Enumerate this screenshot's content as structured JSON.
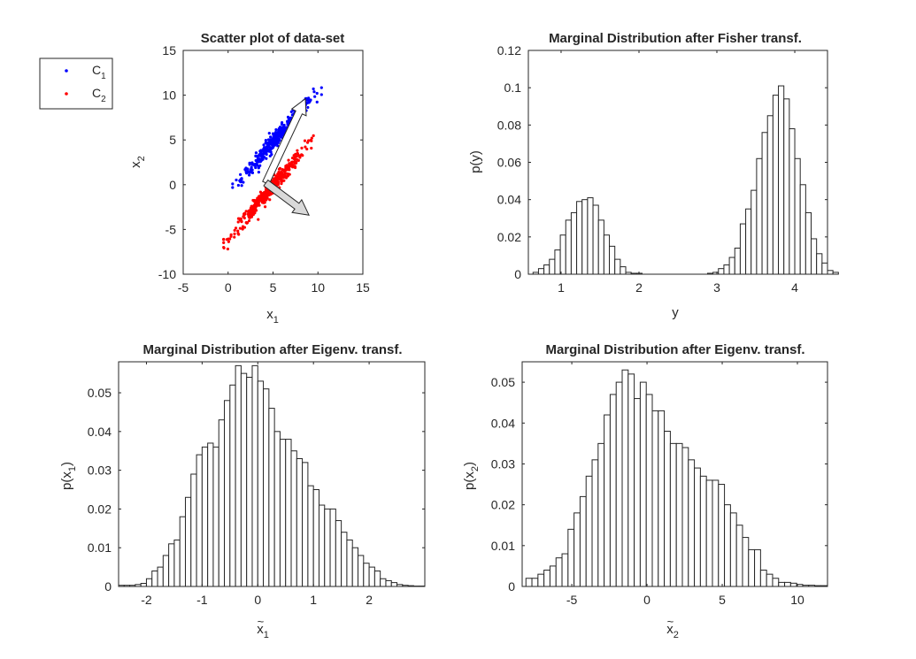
{
  "chart_data": [
    {
      "type": "scatter",
      "title": "Scatter plot of data-set",
      "xlabel": "x",
      "xlabel_sub": "1",
      "ylabel": "x",
      "ylabel_sub": "2",
      "xlim": [
        -5,
        15
      ],
      "ylim": [
        -10,
        15
      ],
      "xticks": [
        -5,
        0,
        5,
        10,
        15
      ],
      "yticks": [
        -10,
        -5,
        0,
        5,
        10,
        15
      ],
      "legend": {
        "placement": "outside-left",
        "entries": [
          {
            "label": "C",
            "sub": "1",
            "color": "#0000ff"
          },
          {
            "label": "C",
            "sub": "2",
            "color": "#ff0000"
          }
        ]
      },
      "series": [
        {
          "name": "C1",
          "color": "#0000ff",
          "generator": {
            "n": 400,
            "slope": 1.15,
            "intercept": -1.0,
            "x_range": [
              0.5,
              10.4
            ],
            "spread": 0.45
          }
        },
        {
          "name": "C2",
          "color": "#ff0000",
          "generator": {
            "n": 400,
            "slope": 1.17,
            "intercept": -6.0,
            "x_range": [
              -0.5,
              9.5
            ],
            "spread": 0.45
          }
        }
      ],
      "arrows": [
        {
          "from": [
            4.2,
            0.2
          ],
          "to": [
            8.6,
            9.6
          ],
          "fill": "#ffffff"
        },
        {
          "from": [
            4.2,
            0.2
          ],
          "to": [
            9.0,
            -3.4
          ],
          "fill": "#d9d9d9"
        }
      ]
    },
    {
      "type": "histogram",
      "title": "Marginal Distribution after Fisher transf.",
      "xlabel": "y",
      "ylabel": "p(y)",
      "xlim": [
        0.58,
        4.42
      ],
      "ylim": [
        0,
        0.12
      ],
      "xticks": [
        1,
        2,
        3,
        4
      ],
      "yticks": [
        0,
        0.02,
        0.04,
        0.06,
        0.08,
        0.1,
        0.12
      ],
      "bin_start": 0.64,
      "bin_width": 0.07,
      "values": [
        0.001,
        0.003,
        0.005,
        0.008,
        0.013,
        0.021,
        0.029,
        0.033,
        0.039,
        0.04,
        0.041,
        0.037,
        0.029,
        0.021,
        0.015,
        0.008,
        0.004,
        0.001,
        0.0005,
        0.0005,
        0,
        0,
        0,
        0,
        0,
        0,
        0,
        0,
        0,
        0,
        0,
        0,
        0.0005,
        0.001,
        0.003,
        0.005,
        0.009,
        0.014,
        0.027,
        0.035,
        0.045,
        0.062,
        0.076,
        0.085,
        0.096,
        0.101,
        0.094,
        0.078,
        0.062,
        0.048,
        0.033,
        0.019,
        0.011,
        0.006,
        0.002,
        0.001
      ]
    },
    {
      "type": "histogram",
      "title": "Marginal Distribution after Eigenv. transf.",
      "xlabel": "x",
      "xlabel_sub": "1",
      "ylabel": "p(x",
      "ylabel_sub": "1",
      "ylabel_close": ")",
      "xlim": [
        -2.5,
        3.0
      ],
      "ylim": [
        0,
        0.058
      ],
      "xticks": [
        -2,
        -1,
        0,
        1,
        2
      ],
      "yticks": [
        0,
        0.01,
        0.02,
        0.03,
        0.04,
        0.05
      ],
      "bin_start": -2.5,
      "bin_width": 0.1,
      "values": [
        0.0003,
        0.0003,
        0.0003,
        0.0005,
        0.0008,
        0.002,
        0.004,
        0.005,
        0.008,
        0.011,
        0.012,
        0.018,
        0.023,
        0.029,
        0.034,
        0.036,
        0.037,
        0.036,
        0.043,
        0.048,
        0.052,
        0.057,
        0.055,
        0.054,
        0.057,
        0.053,
        0.051,
        0.046,
        0.04,
        0.038,
        0.038,
        0.035,
        0.033,
        0.032,
        0.026,
        0.025,
        0.021,
        0.02,
        0.02,
        0.017,
        0.014,
        0.012,
        0.01,
        0.008,
        0.006,
        0.005,
        0.004,
        0.002,
        0.0015,
        0.001,
        0.0005,
        0.0003,
        0.0002,
        0.0001,
        0.0001
      ]
    },
    {
      "type": "histogram",
      "title": "Marginal Distribution after Eigenv. transf.",
      "xlabel": "x",
      "xlabel_sub": "2",
      "ylabel": "p(x",
      "ylabel_sub": "2",
      "ylabel_close": ")",
      "xlim": [
        -8.3,
        12.0
      ],
      "ylim": [
        0,
        0.055
      ],
      "xticks": [
        -5,
        0,
        5,
        10
      ],
      "yticks": [
        0,
        0.01,
        0.02,
        0.03,
        0.04,
        0.05
      ],
      "bin_start": -8.05,
      "bin_width": 0.4,
      "values": [
        0.002,
        0.002,
        0.003,
        0.004,
        0.005,
        0.007,
        0.008,
        0.014,
        0.018,
        0.022,
        0.027,
        0.031,
        0.035,
        0.042,
        0.047,
        0.05,
        0.053,
        0.052,
        0.046,
        0.05,
        0.047,
        0.043,
        0.043,
        0.038,
        0.035,
        0.035,
        0.034,
        0.031,
        0.029,
        0.027,
        0.026,
        0.026,
        0.025,
        0.02,
        0.018,
        0.015,
        0.012,
        0.009,
        0.009,
        0.004,
        0.003,
        0.002,
        0.001,
        0.001,
        0.0008,
        0.0005,
        0.0003,
        0.0003,
        0.0002,
        0.0002
      ]
    }
  ]
}
